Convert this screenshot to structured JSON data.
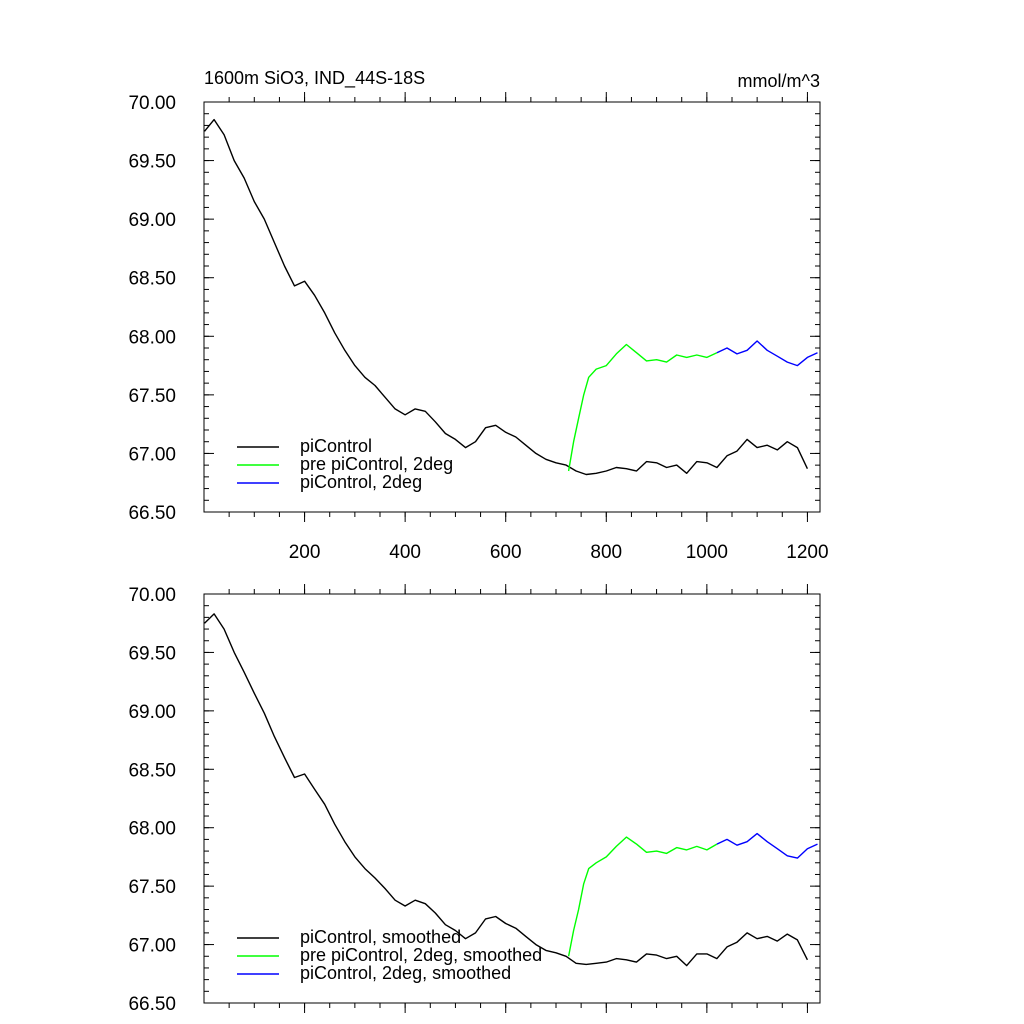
{
  "colors": {
    "piControl": "#000000",
    "pre_piControl_2deg": "#00ff00",
    "piControl_2deg": "#0000ff"
  },
  "chart_data": [
    {
      "type": "line",
      "title": "1600m SiO3, IND_44S-18S",
      "units_label": "mmol/m^3",
      "xlim": [
        0,
        1225
      ],
      "ylim": [
        66.5,
        70.0
      ],
      "xticks": [
        200,
        400,
        600,
        800,
        1000,
        1200
      ],
      "xtick_labels": [
        "200",
        "400",
        "600",
        "800",
        "1000",
        "1200"
      ],
      "yticks": [
        66.5,
        67.0,
        67.5,
        68.0,
        68.5,
        69.0,
        69.5,
        70.0
      ],
      "ytick_labels": [
        "66.50",
        "67.00",
        "67.50",
        "68.00",
        "68.50",
        "69.00",
        "69.50",
        "70.00"
      ],
      "grid": false,
      "legend_position": "bottom-left",
      "series": [
        {
          "name": "piControl",
          "color_key": "piControl",
          "x": [
            1,
            20,
            40,
            60,
            80,
            100,
            120,
            140,
            160,
            180,
            200,
            220,
            240,
            260,
            280,
            300,
            320,
            340,
            360,
            380,
            400,
            420,
            440,
            460,
            480,
            500,
            520,
            540,
            560,
            580,
            600,
            620,
            640,
            660,
            680,
            700,
            720,
            740,
            760,
            780,
            800,
            820,
            840,
            860,
            880,
            900,
            920,
            940,
            960,
            980,
            1000,
            1020,
            1040,
            1060,
            1080,
            1100,
            1120,
            1140,
            1160,
            1180,
            1200
          ],
          "y": [
            69.75,
            69.85,
            69.72,
            69.5,
            69.35,
            69.15,
            69.0,
            68.8,
            68.6,
            68.43,
            68.47,
            68.35,
            68.2,
            68.03,
            67.88,
            67.75,
            67.65,
            67.58,
            67.48,
            67.38,
            67.33,
            67.38,
            67.36,
            67.27,
            67.17,
            67.12,
            67.05,
            67.1,
            67.22,
            67.24,
            67.18,
            67.14,
            67.07,
            67.0,
            66.95,
            66.92,
            66.9,
            66.85,
            66.82,
            66.83,
            66.85,
            66.88,
            66.87,
            66.85,
            66.93,
            66.92,
            66.88,
            66.9,
            66.83,
            66.93,
            66.92,
            66.88,
            66.98,
            67.02,
            67.12,
            67.05,
            67.07,
            67.03,
            67.1,
            67.05,
            66.87
          ]
        },
        {
          "name": "pre piControl, 2deg",
          "color_key": "pre_piControl_2deg",
          "x": [
            725,
            735,
            745,
            755,
            765,
            780,
            800,
            820,
            840,
            860,
            880,
            900,
            920,
            940,
            960,
            980,
            1000,
            1020
          ],
          "y": [
            66.85,
            67.1,
            67.3,
            67.5,
            67.65,
            67.72,
            67.75,
            67.85,
            67.93,
            67.86,
            67.79,
            67.8,
            67.78,
            67.84,
            67.82,
            67.84,
            67.82,
            67.86
          ]
        },
        {
          "name": "piControl, 2deg",
          "color_key": "piControl_2deg",
          "x": [
            1020,
            1040,
            1060,
            1080,
            1100,
            1120,
            1140,
            1160,
            1180,
            1200,
            1220
          ],
          "y": [
            67.86,
            67.9,
            67.85,
            67.88,
            67.96,
            67.88,
            67.83,
            67.78,
            67.75,
            67.82,
            67.86
          ]
        }
      ]
    },
    {
      "type": "line",
      "xlim": [
        0,
        1225
      ],
      "ylim": [
        66.5,
        70.0
      ],
      "xticks": [
        200,
        400,
        600,
        800,
        1000,
        1200
      ],
      "yticks": [
        66.5,
        67.0,
        67.5,
        68.0,
        68.5,
        69.0,
        69.5,
        70.0
      ],
      "ytick_labels": [
        "66.50",
        "67.00",
        "67.50",
        "68.00",
        "68.50",
        "69.00",
        "69.50",
        "70.00"
      ],
      "grid": false,
      "legend_position": "bottom-left",
      "series": [
        {
          "name": "piControl, smoothed",
          "color_key": "piControl",
          "x": [
            1,
            20,
            40,
            60,
            80,
            100,
            120,
            140,
            160,
            180,
            200,
            220,
            240,
            260,
            280,
            300,
            320,
            340,
            360,
            380,
            400,
            420,
            440,
            460,
            480,
            500,
            520,
            540,
            560,
            580,
            600,
            620,
            640,
            660,
            680,
            700,
            720,
            740,
            760,
            780,
            800,
            820,
            840,
            860,
            880,
            900,
            920,
            940,
            960,
            980,
            1000,
            1020,
            1040,
            1060,
            1080,
            1100,
            1120,
            1140,
            1160,
            1180,
            1200
          ],
          "y": [
            69.75,
            69.83,
            69.7,
            69.5,
            69.33,
            69.15,
            68.98,
            68.78,
            68.6,
            68.43,
            68.46,
            68.33,
            68.2,
            68.03,
            67.88,
            67.75,
            67.65,
            67.57,
            67.48,
            67.38,
            67.33,
            67.38,
            67.35,
            67.27,
            67.17,
            67.12,
            67.05,
            67.1,
            67.22,
            67.24,
            67.18,
            67.14,
            67.07,
            67.0,
            66.95,
            66.93,
            66.9,
            66.84,
            66.83,
            66.84,
            66.85,
            66.88,
            66.87,
            66.85,
            66.92,
            66.91,
            66.88,
            66.9,
            66.82,
            66.92,
            66.92,
            66.88,
            66.98,
            67.02,
            67.1,
            67.05,
            67.07,
            67.03,
            67.09,
            67.04,
            66.87
          ]
        },
        {
          "name": "pre piControl, 2deg, smoothed",
          "color_key": "pre_piControl_2deg",
          "x": [
            725,
            735,
            745,
            755,
            765,
            780,
            800,
            820,
            840,
            860,
            880,
            900,
            920,
            940,
            960,
            980,
            1000,
            1020
          ],
          "y": [
            66.9,
            67.12,
            67.3,
            67.52,
            67.65,
            67.7,
            67.75,
            67.84,
            67.92,
            67.86,
            67.79,
            67.8,
            67.78,
            67.83,
            67.81,
            67.84,
            67.81,
            67.86
          ]
        },
        {
          "name": "piControl, 2deg, smoothed",
          "color_key": "piControl_2deg",
          "x": [
            1020,
            1040,
            1060,
            1080,
            1100,
            1120,
            1140,
            1160,
            1180,
            1200,
            1220
          ],
          "y": [
            67.86,
            67.9,
            67.85,
            67.88,
            67.95,
            67.88,
            67.82,
            67.76,
            67.74,
            67.82,
            67.86
          ]
        }
      ]
    }
  ]
}
